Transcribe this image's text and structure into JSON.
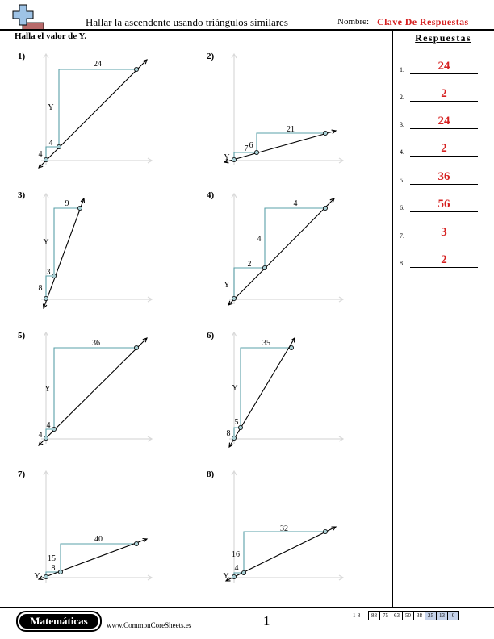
{
  "header": {
    "title": "Hallar la ascendente usando triángulos similares",
    "name_label": "Nombre:",
    "name_value": "Clave De Respuestas"
  },
  "instruction": "Halla el valor de Y.",
  "answers": {
    "title": "Respuestas",
    "items": [
      {
        "num": "1.",
        "value": "24"
      },
      {
        "num": "2.",
        "value": "2"
      },
      {
        "num": "3.",
        "value": "24"
      },
      {
        "num": "4.",
        "value": "2"
      },
      {
        "num": "5.",
        "value": "36"
      },
      {
        "num": "6.",
        "value": "56"
      },
      {
        "num": "7.",
        "value": "3"
      },
      {
        "num": "8.",
        "value": "2"
      }
    ]
  },
  "problems": [
    {
      "label": "1)",
      "top_run": "24",
      "big_rise": "Y",
      "small_rise": "4",
      "small_run": "4"
    },
    {
      "label": "2)",
      "top_run": "21",
      "big_rise": "6",
      "small_rise": "Y",
      "small_run": "7"
    },
    {
      "label": "3)",
      "top_run": "9",
      "big_rise": "Y",
      "small_rise": "8",
      "small_run": "3"
    },
    {
      "label": "4)",
      "top_run": "4",
      "big_rise": "4",
      "small_rise": "Y",
      "small_run": "2"
    },
    {
      "label": "5)",
      "top_run": "36",
      "big_rise": "Y",
      "small_rise": "4",
      "small_run": "4"
    },
    {
      "label": "6)",
      "top_run": "35",
      "big_rise": "Y",
      "small_rise": "8",
      "small_run": "5"
    },
    {
      "label": "7)",
      "top_run": "40",
      "big_rise": "15",
      "small_rise": "Y",
      "small_run": "8"
    },
    {
      "label": "8)",
      "top_run": "32",
      "big_rise": "16",
      "small_rise": "Y",
      "small_run": "4"
    }
  ],
  "footer": {
    "badge": "Matemáticas",
    "site": "www.CommonCoreSheets.es",
    "page": "1",
    "score_label": "1-8",
    "scores": [
      "88",
      "75",
      "63",
      "50",
      "38",
      "25",
      "13",
      "0"
    ]
  },
  "colors": {
    "answer_red": "#d62020",
    "triangle_teal": "#5aa0a8",
    "axis_gray": "#d9d9d9",
    "point_fill": "#a9cfd4"
  }
}
